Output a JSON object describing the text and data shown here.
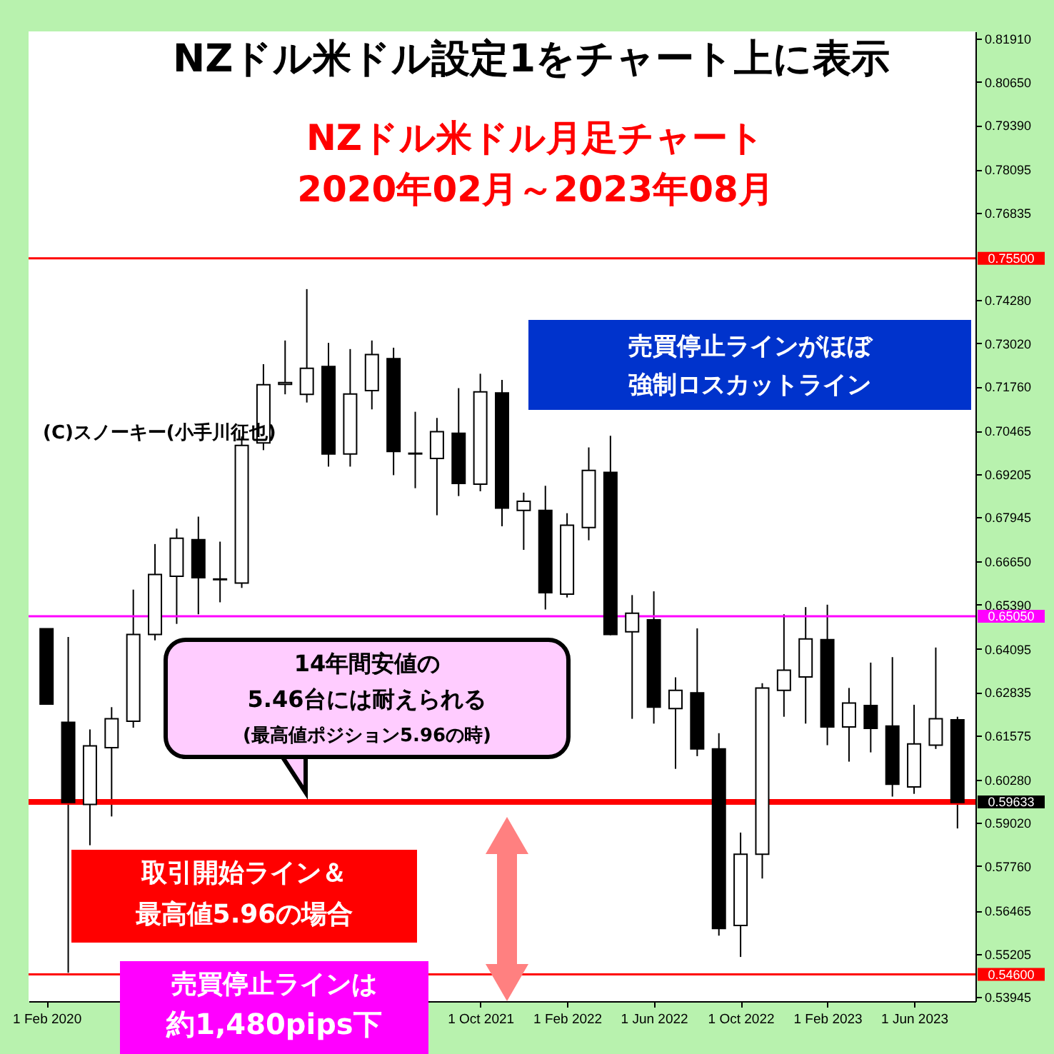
{
  "chart_data": {
    "type": "candlestick",
    "title": "NZドル米ドル設定1をチャート上に表示",
    "subtitle": "NZドル米ドル月足チャート2020年02月～2023年08月",
    "categories": [
      "1 Feb 2020",
      null,
      null,
      null,
      null,
      null,
      null,
      null,
      null,
      null,
      null,
      null,
      null,
      null,
      null,
      null,
      null,
      null,
      null,
      null,
      "1 Oct 2021",
      null,
      null,
      null,
      "1 Feb 2022",
      null,
      null,
      null,
      "1 Jun 2022",
      null,
      null,
      null,
      "1 Oct 2022",
      null,
      null,
      null,
      "1 Feb 2023",
      null,
      null,
      null,
      "1 Jun 2023",
      null,
      null
    ],
    "ohlc": [
      [
        0.6469,
        0.6469,
        0.6249,
        0.6249
      ],
      [
        0.6196,
        0.6445,
        0.5465,
        0.5962
      ],
      [
        0.5956,
        0.6175,
        0.5837,
        0.6127
      ],
      [
        0.6122,
        0.624,
        0.5921,
        0.6206
      ],
      [
        0.6199,
        0.6583,
        0.618,
        0.6452
      ],
      [
        0.6452,
        0.6716,
        0.6435,
        0.6627
      ],
      [
        0.6622,
        0.6761,
        0.6483,
        0.6733
      ],
      [
        0.6729,
        0.6796,
        0.6511,
        0.6618
      ],
      [
        0.6612,
        0.6723,
        0.6546,
        0.6614
      ],
      [
        0.6602,
        0.703,
        0.6588,
        0.7004
      ],
      [
        0.7011,
        0.7241,
        0.699,
        0.7181
      ],
      [
        0.7182,
        0.731,
        0.7153,
        0.7187
      ],
      [
        0.7153,
        0.746,
        0.7129,
        0.7229
      ],
      [
        0.7234,
        0.7303,
        0.6942,
        0.6979
      ],
      [
        0.6979,
        0.7285,
        0.6942,
        0.7154
      ],
      [
        0.7164,
        0.731,
        0.7109,
        0.7269
      ],
      [
        0.7257,
        0.7289,
        0.6917,
        0.6986
      ],
      [
        0.6979,
        0.7102,
        0.6879,
        0.6981
      ],
      [
        0.6966,
        0.7084,
        0.68,
        0.7044
      ],
      [
        0.7039,
        0.7171,
        0.6856,
        0.6893
      ],
      [
        0.6891,
        0.7213,
        0.687,
        0.716
      ],
      [
        0.7157,
        0.7195,
        0.6768,
        0.6821
      ],
      [
        0.6814,
        0.6866,
        0.6699,
        0.6841
      ],
      [
        0.6814,
        0.6886,
        0.6525,
        0.6574
      ],
      [
        0.657,
        0.6806,
        0.656,
        0.6771
      ],
      [
        0.6764,
        0.6998,
        0.6727,
        0.6931
      ],
      [
        0.6925,
        0.7032,
        0.645,
        0.6452
      ],
      [
        0.646,
        0.6567,
        0.6206,
        0.6514
      ],
      [
        0.6495,
        0.6578,
        0.6192,
        0.624
      ],
      [
        0.6236,
        0.6327,
        0.606,
        0.6289
      ],
      [
        0.6282,
        0.647,
        0.6097,
        0.6118
      ],
      [
        0.6118,
        0.6164,
        0.5573,
        0.5594
      ],
      [
        0.5603,
        0.5874,
        0.5511,
        0.5811
      ],
      [
        0.5811,
        0.631,
        0.574,
        0.6296
      ],
      [
        0.6289,
        0.6511,
        0.6212,
        0.6348
      ],
      [
        0.6328,
        0.6532,
        0.6192,
        0.6439
      ],
      [
        0.6437,
        0.6539,
        0.6129,
        0.6182
      ],
      [
        0.6182,
        0.6296,
        0.6081,
        0.6252
      ],
      [
        0.6245,
        0.637,
        0.6108,
        0.6178
      ],
      [
        0.6185,
        0.6386,
        0.5979,
        0.6015
      ],
      [
        0.6007,
        0.6247,
        0.5987,
        0.6133
      ],
      [
        0.6129,
        0.6414,
        0.6118,
        0.6206
      ],
      [
        0.6203,
        0.6212,
        0.5886,
        0.5962
      ]
    ],
    "ylim": [
      0.5382,
      0.8212
    ],
    "yticks": [
      {
        "value": 0.8191,
        "label": "0.81910"
      },
      {
        "value": 0.8065,
        "label": "0.80650"
      },
      {
        "value": 0.7939,
        "label": "0.79390"
      },
      {
        "value": 0.78095,
        "label": "0.78095"
      },
      {
        "value": 0.76835,
        "label": "0.76835"
      },
      {
        "value": 0.7428,
        "label": "0.74280"
      },
      {
        "value": 0.7302,
        "label": "0.73020"
      },
      {
        "value": 0.7176,
        "label": "0.71760"
      },
      {
        "value": 0.70465,
        "label": "0.70465"
      },
      {
        "value": 0.69205,
        "label": "0.69205"
      },
      {
        "value": 0.67945,
        "label": "0.67945"
      },
      {
        "value": 0.6665,
        "label": "0.66650"
      },
      {
        "value": 0.6539,
        "label": "0.65390"
      },
      {
        "value": 0.64095,
        "label": "0.64095"
      },
      {
        "value": 0.62835,
        "label": "0.62835"
      },
      {
        "value": 0.61575,
        "label": "0.61575"
      },
      {
        "value": 0.6028,
        "label": "0.60280"
      },
      {
        "value": 0.5902,
        "label": "0.59020"
      },
      {
        "value": 0.5776,
        "label": "0.57760"
      },
      {
        "value": 0.56465,
        "label": "0.56465"
      },
      {
        "value": 0.55205,
        "label": "0.55205"
      },
      {
        "value": 0.53945,
        "label": "0.53945"
      }
    ],
    "ref_lines": [
      {
        "axis": "y",
        "value": 0.755,
        "label": "0.75500",
        "color": "#ff0000"
      },
      {
        "axis": "y",
        "value": 0.6505,
        "label": "0.65050",
        "color": "#ff00ff"
      },
      {
        "axis": "y",
        "value": 0.59633,
        "label": "0.59633",
        "color": "#ff0000"
      },
      {
        "axis": "y",
        "value": 0.546,
        "label": "0.54600",
        "color": "#ff0000"
      }
    ],
    "annotations": [
      "(C)スノーキー(小手川征也)",
      "売買停止ラインがほぼ強制ロスカットライン",
      "14年間安値の5.46台には耐えられる(最高値ポジション5.96の時)",
      "取引開始ライン＆最高値5.96の場合",
      "売買停止ラインは約1,480pips下"
    ]
  }
}
